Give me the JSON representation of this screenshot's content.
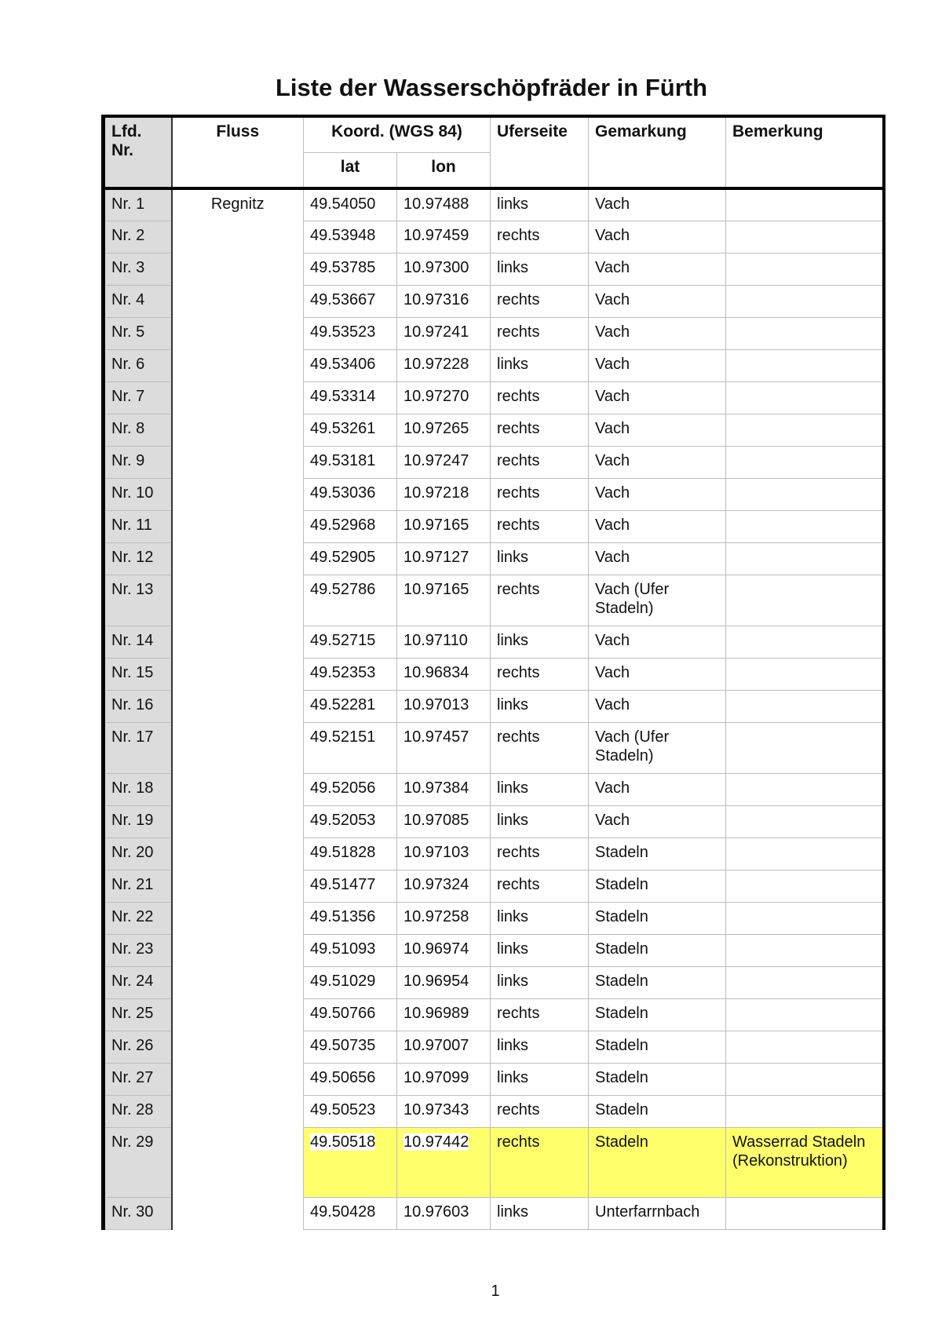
{
  "title": "Liste der Wasserschöpfräder in Fürth",
  "page_number": "1",
  "highlight_color": "#ffff6b",
  "headers": {
    "lfd_nr": "Lfd. Nr.",
    "fluss": "Fluss",
    "koord": "Koord. (WGS 84)",
    "lat": "lat",
    "lon": "lon",
    "uferseite": "Uferseite",
    "gemarkung": "Gemarkung",
    "bemerkung": "Bemerkung"
  },
  "fluss": "Regnitz",
  "rows": [
    {
      "nr": "Nr. 1",
      "lat": "49.54050",
      "lon": "10.97488",
      "ufer": "links",
      "gem": "Vach",
      "bem": ""
    },
    {
      "nr": "Nr. 2",
      "lat": "49.53948",
      "lon": "10.97459",
      "ufer": "rechts",
      "gem": "Vach",
      "bem": ""
    },
    {
      "nr": "Nr. 3",
      "lat": "49.53785",
      "lon": "10.97300",
      "ufer": "links",
      "gem": "Vach",
      "bem": ""
    },
    {
      "nr": "Nr. 4",
      "lat": "49.53667",
      "lon": "10.97316",
      "ufer": "rechts",
      "gem": "Vach",
      "bem": ""
    },
    {
      "nr": "Nr. 5",
      "lat": "49.53523",
      "lon": "10.97241",
      "ufer": "rechts",
      "gem": "Vach",
      "bem": ""
    },
    {
      "nr": "Nr. 6",
      "lat": "49.53406",
      "lon": "10.97228",
      "ufer": "links",
      "gem": "Vach",
      "bem": ""
    },
    {
      "nr": "Nr. 7",
      "lat": "49.53314",
      "lon": "10.97270",
      "ufer": "rechts",
      "gem": "Vach",
      "bem": ""
    },
    {
      "nr": "Nr. 8",
      "lat": "49.53261",
      "lon": "10.97265",
      "ufer": "rechts",
      "gem": "Vach",
      "bem": ""
    },
    {
      "nr": "Nr. 9",
      "lat": "49.53181",
      "lon": "10.97247",
      "ufer": "rechts",
      "gem": "Vach",
      "bem": ""
    },
    {
      "nr": "Nr. 10",
      "lat": "49.53036",
      "lon": "10.97218",
      "ufer": "rechts",
      "gem": "Vach",
      "bem": ""
    },
    {
      "nr": "Nr. 11",
      "lat": "49.52968",
      "lon": "10.97165",
      "ufer": "rechts",
      "gem": "Vach",
      "bem": ""
    },
    {
      "nr": "Nr. 12",
      "lat": "49.52905",
      "lon": "10.97127",
      "ufer": "links",
      "gem": "Vach",
      "bem": ""
    },
    {
      "nr": "Nr. 13",
      "lat": "49.52786",
      "lon": "10.97165",
      "ufer": "rechts",
      "gem": "Vach (Ufer Stadeln)",
      "bem": ""
    },
    {
      "nr": "Nr. 14",
      "lat": "49.52715",
      "lon": "10.97110",
      "ufer": "links",
      "gem": "Vach",
      "bem": ""
    },
    {
      "nr": "Nr. 15",
      "lat": "49.52353",
      "lon": "10.96834",
      "ufer": "rechts",
      "gem": "Vach",
      "bem": ""
    },
    {
      "nr": "Nr. 16",
      "lat": "49.52281",
      "lon": "10.97013",
      "ufer": "links",
      "gem": "Vach",
      "bem": ""
    },
    {
      "nr": "Nr. 17",
      "lat": "49.52151",
      "lon": "10.97457",
      "ufer": "rechts",
      "gem": "Vach (Ufer Stadeln)",
      "bem": ""
    },
    {
      "nr": "Nr. 18",
      "lat": "49.52056",
      "lon": "10.97384",
      "ufer": "links",
      "gem": "Vach",
      "bem": ""
    },
    {
      "nr": "Nr. 19",
      "lat": "49.52053",
      "lon": "10.97085",
      "ufer": "links",
      "gem": "Vach",
      "bem": ""
    },
    {
      "nr": "Nr. 20",
      "lat": "49.51828",
      "lon": "10.97103",
      "ufer": "rechts",
      "gem": "Stadeln",
      "bem": ""
    },
    {
      "nr": "Nr. 21",
      "lat": "49.51477",
      "lon": "10.97324",
      "ufer": "rechts",
      "gem": "Stadeln",
      "bem": ""
    },
    {
      "nr": "Nr. 22",
      "lat": "49.51356",
      "lon": "10.97258",
      "ufer": "links",
      "gem": "Stadeln",
      "bem": ""
    },
    {
      "nr": "Nr. 23",
      "lat": "49.51093",
      "lon": "10.96974",
      "ufer": "links",
      "gem": "Stadeln",
      "bem": ""
    },
    {
      "nr": "Nr. 24",
      "lat": "49.51029",
      "lon": "10.96954",
      "ufer": "links",
      "gem": "Stadeln",
      "bem": ""
    },
    {
      "nr": "Nr. 25",
      "lat": "49.50766",
      "lon": "10.96989",
      "ufer": "rechts",
      "gem": "Stadeln",
      "bem": ""
    },
    {
      "nr": "Nr. 26",
      "lat": "49.50735",
      "lon": "10.97007",
      "ufer": "links",
      "gem": "Stadeln",
      "bem": ""
    },
    {
      "nr": "Nr. 27",
      "lat": "49.50656",
      "lon": "10.97099",
      "ufer": "links",
      "gem": "Stadeln",
      "bem": ""
    },
    {
      "nr": "Nr. 28",
      "lat": "49.50523",
      "lon": "10.97343",
      "ufer": "rechts",
      "gem": "Stadeln",
      "bem": ""
    },
    {
      "nr": "Nr. 29",
      "lat": "49.50518",
      "lon": "10.97442",
      "ufer": "rechts",
      "gem": "Stadeln",
      "bem": "Wasserrad Stadeln (Rekonstruktion)",
      "highlight": true
    },
    {
      "nr": "Nr. 30",
      "lat": "49.50428",
      "lon": "10.97603",
      "ufer": "links",
      "gem": "Unterfarrnbach",
      "bem": ""
    }
  ]
}
